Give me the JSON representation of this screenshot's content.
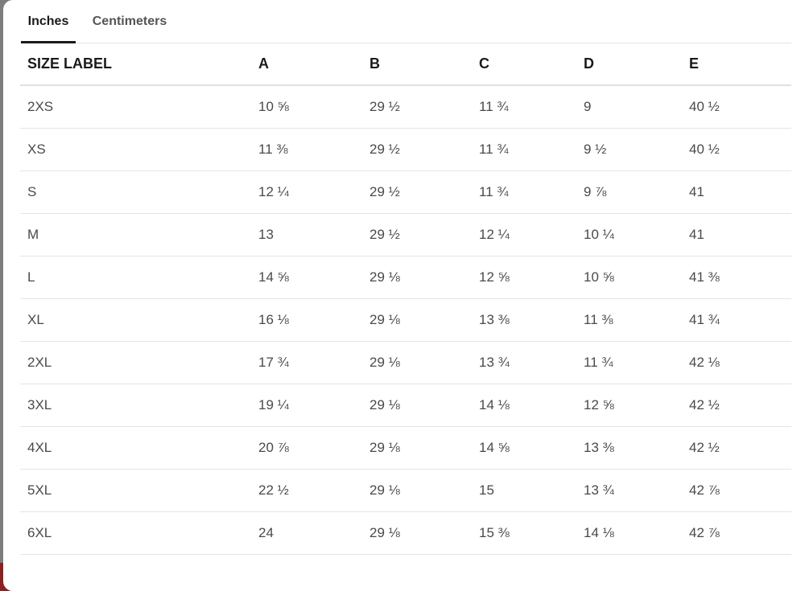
{
  "tabs": [
    {
      "label": "Inches",
      "active": true
    },
    {
      "label": "Centimeters",
      "active": false
    }
  ],
  "table": {
    "headers": [
      "SIZE LABEL",
      "A",
      "B",
      "C",
      "D",
      "E"
    ],
    "rows": [
      [
        "2XS",
        "10 ⅝",
        "29 ½",
        "11 ¾",
        "9",
        "40 ½"
      ],
      [
        "XS",
        "11 ⅜",
        "29 ½",
        "11 ¾",
        "9 ½",
        "40 ½"
      ],
      [
        "S",
        "12 ¼",
        "29 ½",
        "11 ¾",
        "9 ⅞",
        "41"
      ],
      [
        "M",
        "13",
        "29 ½",
        "12 ¼",
        "10 ¼",
        "41"
      ],
      [
        "L",
        "14 ⅝",
        "29 ⅛",
        "12 ⅝",
        "10 ⅝",
        "41 ⅜"
      ],
      [
        "XL",
        "16 ⅛",
        "29 ⅛",
        "13 ⅜",
        "11 ⅜",
        "41 ¾"
      ],
      [
        "2XL",
        "17 ¾",
        "29 ⅛",
        "13 ¾",
        "11 ¾",
        "42 ⅛"
      ],
      [
        "3XL",
        "19 ¼",
        "29 ⅛",
        "14 ⅛",
        "12 ⅝",
        "42 ½"
      ],
      [
        "4XL",
        "20 ⅞",
        "29 ⅛",
        "14 ⅝",
        "13 ⅜",
        "42 ½"
      ],
      [
        "5XL",
        "22 ½",
        "29 ⅛",
        "15",
        "13 ¾",
        "42 ⅞"
      ],
      [
        "6XL",
        "24",
        "29 ⅛",
        "15 ⅜",
        "14 ⅛",
        "42 ⅞"
      ]
    ]
  },
  "colors": {
    "active_tab": "#1a1a1a",
    "inactive_tab": "#555555",
    "text": "#4a4a4a",
    "divider": "#e4e4e4"
  }
}
